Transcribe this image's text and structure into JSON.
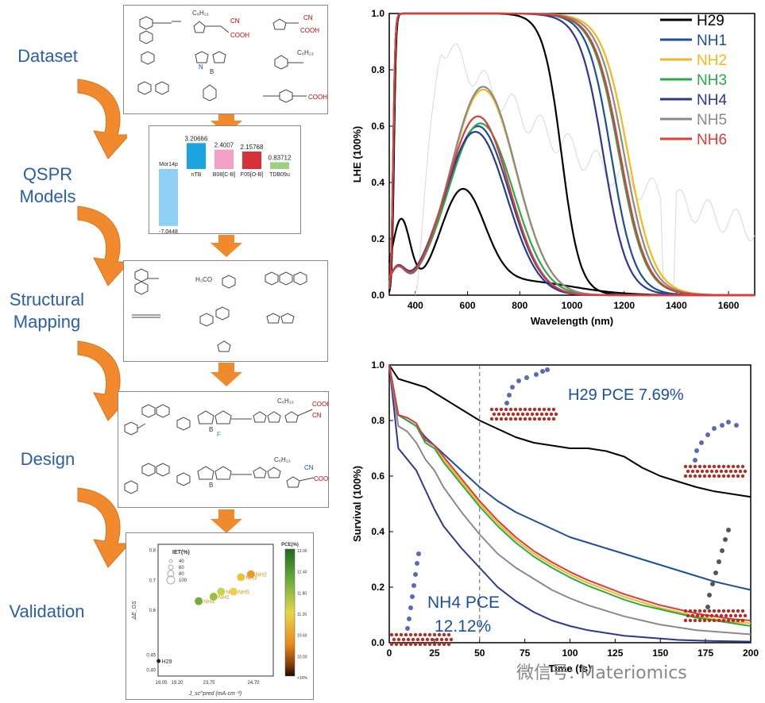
{
  "workflow": {
    "stages": [
      {
        "id": "dataset",
        "label": "Dataset"
      },
      {
        "id": "qspr",
        "label": "QSPR\nModels"
      },
      {
        "id": "mapping",
        "label": "Structural\nMapping"
      },
      {
        "id": "design",
        "label": "Design"
      },
      {
        "id": "validation",
        "label": "Validation"
      }
    ],
    "colors": {
      "arrow": "#f08a2c",
      "label": "#2a5ea8"
    }
  },
  "qspr_panel": {
    "descriptors": [
      {
        "name": "Mor14p",
        "value": -7.0448,
        "value_label": "-7.0448",
        "color": "#8fd0f4"
      },
      {
        "name": "nTB",
        "value": 3.20666,
        "value_label": "3.20666",
        "color": "#1ba4e0"
      },
      {
        "name": "B08[C-B]",
        "value": 2.4007,
        "value_label": "2.4007",
        "color": "#f2a0c8"
      },
      {
        "name": "F05[O-B]",
        "value": 2.15768,
        "value_label": "2.15768",
        "color": "#d8303a"
      },
      {
        "name": "TDB09u",
        "value": 0.83712,
        "value_label": "0.83712",
        "color": "#9ed083"
      }
    ]
  },
  "molecule_text": {
    "c6h13": "C₆H₁₃",
    "cn": "CN",
    "cooh": "COOH",
    "h3co": "H₃CO",
    "b": "B",
    "n": "N",
    "f": "F"
  },
  "validation_panel": {
    "xlabel": "J_sc^pred (mA·cm⁻²)",
    "ylabel": "ΔE_GS",
    "xticks": [
      "19.05",
      "19.20",
      "23.75",
      "24.70"
    ],
    "yticks": [
      "0.40",
      "0.45",
      "0.6",
      "0.7",
      "0.8"
    ],
    "legend_title": "IET(%)",
    "legend_items": [
      "40",
      "60",
      "80",
      "100"
    ],
    "colorbar_title": "PCE(%)",
    "colorbar_ticks": [
      "13.00",
      "12.40",
      "11.80",
      "11.20",
      "10.60",
      "10.00",
      "<10%"
    ],
    "points": [
      {
        "name": "H29",
        "x": 19.1,
        "y": 0.43,
        "color": "#222222"
      },
      {
        "name": "NH4",
        "x": 23.4,
        "y": 0.63,
        "color": "#6fae3a"
      },
      {
        "name": "NH1",
        "x": 23.7,
        "y": 0.645,
        "color": "#96bf3c"
      },
      {
        "name": "NH6",
        "x": 23.85,
        "y": 0.662,
        "color": "#c9d24a"
      },
      {
        "name": "NH5",
        "x": 24.1,
        "y": 0.662,
        "color": "#e9d050"
      },
      {
        "name": "NH3",
        "x": 24.25,
        "y": 0.71,
        "color": "#f0c23c"
      },
      {
        "name": "NH2",
        "x": 24.45,
        "y": 0.72,
        "color": "#ef9a26"
      }
    ]
  },
  "chart_data": [
    {
      "type": "line",
      "title": "",
      "xlabel": "Wavelength (nm)",
      "ylabel": "LHE (100%)",
      "xlim": [
        300,
        1700
      ],
      "ylim": [
        0,
        1.0
      ],
      "xticks": [
        400,
        600,
        800,
        1000,
        1200,
        1400,
        1600
      ],
      "yticks": [
        0.0,
        0.2,
        0.4,
        0.6,
        0.8,
        1.0
      ],
      "legend_position": "top-right",
      "background_spectrum": "solar (grey)",
      "series": [
        {
          "name": "H29",
          "color": "#000000",
          "plateau_end": 900,
          "edge_center": 960,
          "edge_width": 35,
          "peaks": [
            {
              "center": 345,
              "height": 0.26,
              "sigma": 35
            },
            {
              "center": 580,
              "height": 0.35,
              "sigma": 85
            }
          ],
          "valley": [
            430,
            0.09
          ]
        },
        {
          "name": "NH1",
          "color": "#1c4f9c",
          "plateau_end": 1060,
          "edge_center": 1150,
          "edge_width": 45,
          "peak": {
            "center": 640,
            "height": 0.6,
            "sigma": 120
          }
        },
        {
          "name": "NH2",
          "color": "#f2b81c",
          "plateau_end": 1110,
          "edge_center": 1215,
          "edge_width": 50,
          "peak": {
            "center": 660,
            "height": 0.73,
            "sigma": 125
          }
        },
        {
          "name": "NH3",
          "color": "#2aa84a",
          "plateau_end": 1080,
          "edge_center": 1180,
          "edge_width": 50,
          "peak": {
            "center": 650,
            "height": 0.61,
            "sigma": 125
          }
        },
        {
          "name": "NH4",
          "color": "#2e3890",
          "plateau_end": 1030,
          "edge_center": 1120,
          "edge_width": 45,
          "peak": {
            "center": 630,
            "height": 0.58,
            "sigma": 120
          }
        },
        {
          "name": "NH5",
          "color": "#8a8a8a",
          "plateau_end": 1100,
          "edge_center": 1200,
          "edge_width": 50,
          "peak": {
            "center": 660,
            "height": 0.74,
            "sigma": 125
          }
        },
        {
          "name": "NH6",
          "color": "#e03a3a",
          "plateau_end": 1090,
          "edge_center": 1185,
          "edge_width": 50,
          "peak": {
            "center": 640,
            "height": 0.635,
            "sigma": 120
          }
        }
      ]
    },
    {
      "type": "line",
      "title": "",
      "xlabel": "Time (fs)",
      "ylabel": "Survival (100%)",
      "xlim": [
        0,
        200
      ],
      "ylim": [
        0,
        1.0
      ],
      "xticks": [
        0,
        25,
        50,
        75,
        100,
        125,
        150,
        175,
        200
      ],
      "yticks": [
        0.0,
        0.2,
        0.4,
        0.6,
        0.8,
        1.0
      ],
      "vline": 50,
      "annotations": [
        {
          "text": "H29 PCE 7.69%",
          "position": "top-right",
          "color": "#1c4f9c"
        },
        {
          "text": "NH4 PCE\n12.12%",
          "position": "bottom-left",
          "color": "#1c4f9c"
        }
      ],
      "series": [
        {
          "name": "H29",
          "color": "#000000",
          "x": [
            0,
            5,
            10,
            20,
            30,
            40,
            50,
            60,
            70,
            80,
            90,
            100,
            110,
            120,
            130,
            140,
            150,
            160,
            170,
            180,
            190,
            200
          ],
          "y": [
            1.0,
            0.95,
            0.94,
            0.92,
            0.88,
            0.84,
            0.8,
            0.77,
            0.74,
            0.72,
            0.71,
            0.7,
            0.7,
            0.69,
            0.67,
            0.63,
            0.6,
            0.58,
            0.56,
            0.545,
            0.535,
            0.525
          ]
        },
        {
          "name": "NH1",
          "color": "#1c4f9c",
          "x": [
            0,
            5,
            10,
            15,
            20,
            25,
            30,
            40,
            50,
            60,
            70,
            80,
            90,
            100,
            110,
            120,
            130,
            140,
            150,
            160,
            170,
            180,
            190,
            200
          ],
          "y": [
            1.0,
            0.82,
            0.8,
            0.78,
            0.74,
            0.71,
            0.68,
            0.62,
            0.56,
            0.51,
            0.47,
            0.44,
            0.41,
            0.38,
            0.36,
            0.34,
            0.32,
            0.3,
            0.28,
            0.26,
            0.24,
            0.22,
            0.205,
            0.19
          ]
        },
        {
          "name": "NH2",
          "color": "#f2b81c",
          "x": [
            0,
            5,
            10,
            15,
            20,
            25,
            30,
            40,
            50,
            60,
            70,
            80,
            90,
            100,
            110,
            120,
            130,
            140,
            150,
            160,
            170,
            180,
            190,
            200
          ],
          "y": [
            1.0,
            0.82,
            0.8,
            0.78,
            0.72,
            0.7,
            0.66,
            0.58,
            0.5,
            0.43,
            0.37,
            0.32,
            0.28,
            0.245,
            0.215,
            0.19,
            0.165,
            0.145,
            0.125,
            0.11,
            0.095,
            0.085,
            0.075,
            0.07
          ]
        },
        {
          "name": "NH3",
          "color": "#2aa84a",
          "x": [
            0,
            5,
            10,
            15,
            20,
            25,
            30,
            40,
            50,
            60,
            70,
            80,
            90,
            100,
            110,
            120,
            130,
            140,
            150,
            160,
            170,
            180,
            190,
            200
          ],
          "y": [
            1.0,
            0.82,
            0.8,
            0.78,
            0.72,
            0.7,
            0.65,
            0.57,
            0.49,
            0.42,
            0.36,
            0.31,
            0.27,
            0.235,
            0.205,
            0.18,
            0.155,
            0.135,
            0.12,
            0.105,
            0.09,
            0.08,
            0.07,
            0.06
          ]
        },
        {
          "name": "NH4",
          "color": "#2e3890",
          "x": [
            0,
            5,
            10,
            15,
            20,
            25,
            30,
            40,
            50,
            60,
            70,
            80,
            90,
            100,
            110,
            120,
            130,
            140,
            150,
            160,
            170,
            180,
            190,
            200
          ],
          "y": [
            1.0,
            0.7,
            0.66,
            0.62,
            0.55,
            0.48,
            0.42,
            0.34,
            0.27,
            0.2,
            0.15,
            0.11,
            0.08,
            0.06,
            0.045,
            0.035,
            0.025,
            0.02,
            0.015,
            0.01,
            0.008,
            0.006,
            0.005,
            0.004
          ]
        },
        {
          "name": "NH5",
          "color": "#8a8a8a",
          "x": [
            0,
            5,
            10,
            15,
            20,
            25,
            30,
            40,
            50,
            60,
            70,
            80,
            90,
            100,
            110,
            120,
            130,
            140,
            150,
            160,
            170,
            180,
            190,
            200
          ],
          "y": [
            1.0,
            0.78,
            0.76,
            0.72,
            0.66,
            0.62,
            0.56,
            0.47,
            0.39,
            0.32,
            0.27,
            0.23,
            0.19,
            0.16,
            0.135,
            0.115,
            0.095,
            0.08,
            0.065,
            0.055,
            0.045,
            0.04,
            0.035,
            0.03
          ]
        },
        {
          "name": "NH6",
          "color": "#e03a3a",
          "x": [
            0,
            5,
            10,
            15,
            20,
            25,
            30,
            40,
            50,
            60,
            70,
            80,
            90,
            100,
            110,
            120,
            130,
            140,
            150,
            160,
            170,
            180,
            190,
            200
          ],
          "y": [
            1.0,
            0.82,
            0.81,
            0.79,
            0.73,
            0.71,
            0.67,
            0.59,
            0.51,
            0.44,
            0.38,
            0.33,
            0.29,
            0.255,
            0.225,
            0.2,
            0.175,
            0.155,
            0.135,
            0.12,
            0.105,
            0.095,
            0.085,
            0.08
          ]
        }
      ]
    }
  ],
  "watermark": {
    "text": "微信号: Materiomics"
  }
}
